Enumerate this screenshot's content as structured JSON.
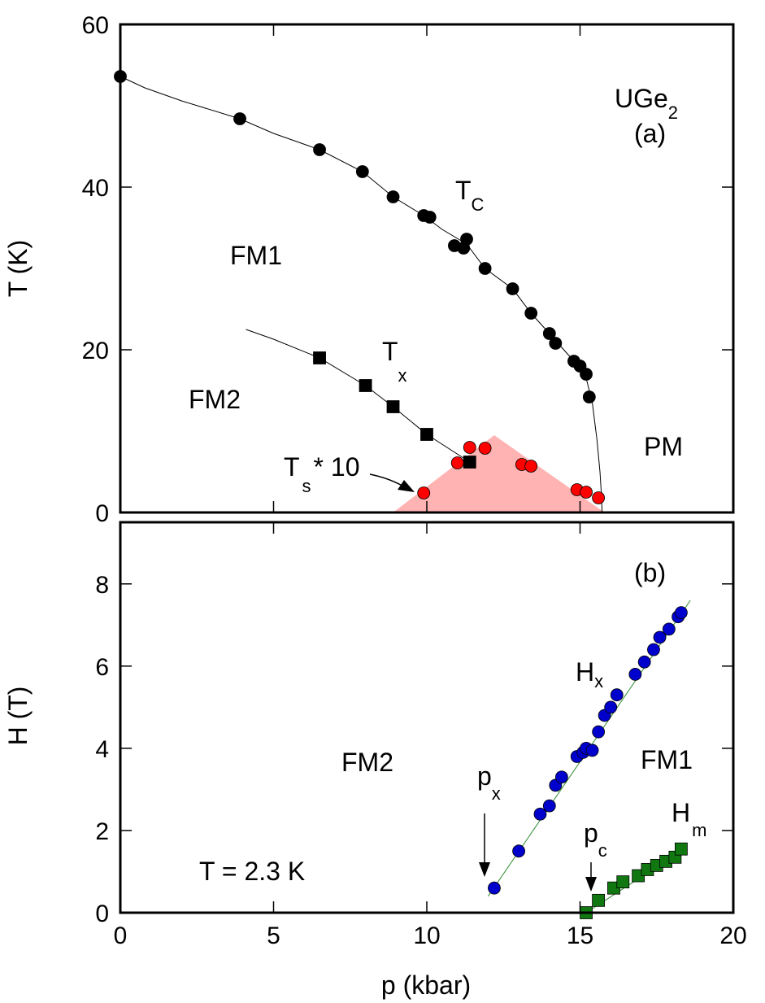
{
  "chart_data": [
    {
      "id": "a",
      "type": "scatter",
      "title": "",
      "panel_label": "(a)",
      "compound": {
        "base": "UGe",
        "subscript": "2"
      },
      "xlabel": "p (kbar)",
      "ylabel": "T (K)",
      "xlim": [
        0,
        20
      ],
      "ylim": [
        0,
        60
      ],
      "xticks": [
        0,
        5,
        10,
        15,
        20
      ],
      "yticks": [
        0,
        20,
        40,
        60
      ],
      "yticklabels": [
        "0",
        "20",
        "40",
        "60"
      ],
      "grid": false,
      "series": [
        {
          "name": "Tc",
          "label": {
            "main": "T",
            "subscript": "C"
          },
          "marker": "circle",
          "color": "#000000",
          "x": [
            0,
            3.9,
            6.5,
            7.9,
            8.9,
            9.9,
            10.1,
            10.9,
            11.2,
            11.3,
            11.9,
            12.8,
            13.4,
            14.0,
            14.2,
            14.8,
            15.0,
            15.2,
            15.3
          ],
          "y": [
            53.6,
            48.4,
            44.6,
            41.9,
            38.8,
            36.5,
            36.3,
            32.8,
            32.5,
            33.6,
            30.0,
            27.5,
            24.5,
            22.0,
            20.8,
            18.6,
            18.0,
            17.0,
            14.2
          ]
        },
        {
          "name": "Tx",
          "label": {
            "main": "T",
            "subscript": "x"
          },
          "marker": "square",
          "color": "#000000",
          "x": [
            6.5,
            8.0,
            8.9,
            10.0,
            11.4
          ],
          "y": [
            19.0,
            15.6,
            13.0,
            9.6,
            6.2
          ]
        },
        {
          "name": "Ts*10",
          "label": {
            "main": "T",
            "subscript": "s",
            "suffix": "* 10"
          },
          "marker": "circle",
          "color": "#ff0000",
          "x": [
            9.9,
            11.0,
            11.4,
            11.9,
            13.1,
            13.4,
            14.9,
            15.2,
            15.6
          ],
          "y": [
            2.4,
            6.1,
            8.0,
            7.9,
            5.9,
            5.7,
            2.8,
            2.5,
            1.8
          ]
        }
      ],
      "lines": [
        {
          "name": "Tc-fit",
          "color": "#000000",
          "x": [
            0,
            0.8,
            2,
            3.9,
            5,
            6.5,
            7.9,
            8.9,
            9.9,
            10.5,
            11.3,
            11.9,
            12.8,
            13.4,
            14.0,
            14.8,
            15.2,
            15.4,
            15.55,
            15.65,
            15.7,
            15.72
          ],
          "y": [
            53.6,
            52.2,
            50.6,
            48.4,
            46.6,
            44.6,
            41.9,
            38.8,
            36.5,
            34.8,
            33.0,
            30.0,
            27.5,
            24.5,
            22.0,
            18.6,
            16.5,
            13.5,
            9.0,
            5.0,
            2.0,
            0
          ]
        },
        {
          "name": "Tx-fit",
          "color": "#000000",
          "x": [
            4.1,
            5.0,
            6.5,
            8.0,
            8.9,
            10.0,
            11.4
          ],
          "y": [
            22.5,
            21.3,
            19.0,
            15.6,
            13.0,
            9.6,
            6.2
          ]
        }
      ],
      "regions": [
        {
          "name": "superconducting-dome",
          "color": "#ffb3b3",
          "x": [
            8.9,
            12.2,
            15.8
          ],
          "y": [
            0,
            9.5,
            0
          ]
        }
      ],
      "annotations": [
        {
          "name": "FM1",
          "text": "FM1"
        },
        {
          "name": "FM2",
          "text": "FM2"
        },
        {
          "name": "PM",
          "text": "PM"
        }
      ]
    },
    {
      "id": "b",
      "type": "scatter",
      "title": "",
      "panel_label": "(b)",
      "xlabel": "p (kbar)",
      "ylabel": "H (T)",
      "xlim": [
        0,
        20
      ],
      "ylim": [
        0,
        9.5
      ],
      "xticks": [
        0,
        5,
        10,
        15,
        20
      ],
      "xticklabels": [
        "0",
        "5",
        "10",
        "15",
        "20"
      ],
      "yticks": [
        0,
        2,
        4,
        6,
        8
      ],
      "yticklabels": [
        "0",
        "2",
        "4",
        "6",
        "8"
      ],
      "grid": false,
      "series": [
        {
          "name": "Hx",
          "label": {
            "main": "H",
            "subscript": "x"
          },
          "marker": "circle",
          "color": "#0000cc",
          "x": [
            12.2,
            13.0,
            13.7,
            14.0,
            14.2,
            14.4,
            14.9,
            15.1,
            15.2,
            15.4,
            15.6,
            15.8,
            16.0,
            16.2,
            16.8,
            17.1,
            17.4,
            17.6,
            17.9,
            18.2,
            18.3
          ],
          "y": [
            0.6,
            1.5,
            2.4,
            2.6,
            3.1,
            3.3,
            3.8,
            3.9,
            4.0,
            3.95,
            4.4,
            4.8,
            5.0,
            5.3,
            5.8,
            6.1,
            6.4,
            6.7,
            6.9,
            7.2,
            7.3
          ]
        },
        {
          "name": "Hm",
          "label": {
            "main": "H",
            "subscript": "m"
          },
          "marker": "square",
          "color": "#117711",
          "x": [
            15.2,
            15.6,
            16.1,
            16.4,
            16.9,
            17.2,
            17.5,
            17.8,
            18.1,
            18.3
          ],
          "y": [
            0.0,
            0.3,
            0.6,
            0.75,
            0.9,
            1.05,
            1.15,
            1.25,
            1.35,
            1.55
          ]
        }
      ],
      "lines": [
        {
          "name": "Hx-fit",
          "color": "#2e8b2e",
          "x": [
            12.0,
            18.6
          ],
          "y": [
            0.4,
            7.6
          ]
        },
        {
          "name": "Hm-fit",
          "color": "#2e8b2e",
          "x": [
            15.2,
            18.5
          ],
          "y": [
            0.0,
            1.6
          ]
        }
      ],
      "annotations": [
        {
          "name": "FM2",
          "text": "FM2"
        },
        {
          "name": "FM1",
          "text": "FM1"
        },
        {
          "name": "temperature",
          "text": "T = 2.3 K"
        },
        {
          "name": "px",
          "main": "p",
          "subscript": "x"
        },
        {
          "name": "pc",
          "main": "p",
          "subscript": "c"
        }
      ]
    }
  ]
}
